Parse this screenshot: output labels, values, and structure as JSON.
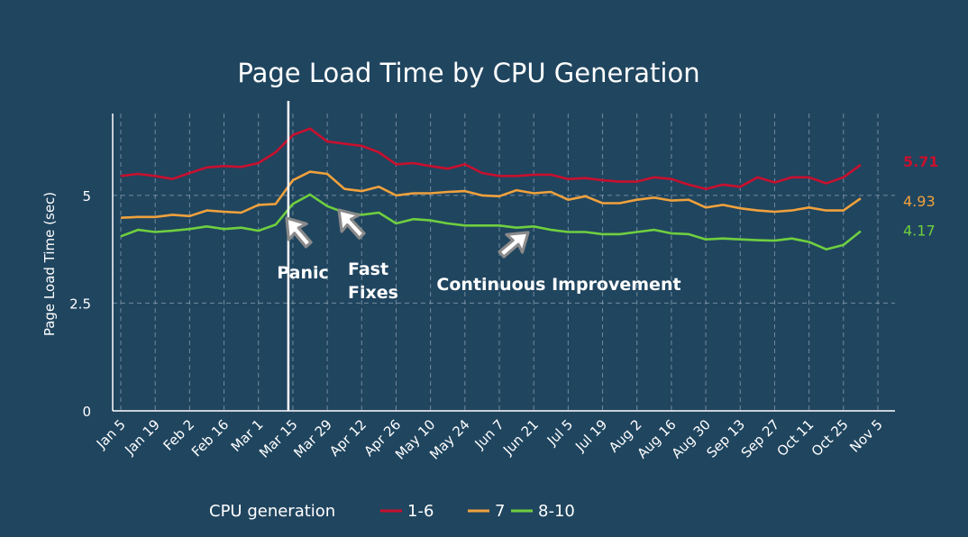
{
  "chart_data": {
    "type": "line",
    "title": "Page Load Time by CPU Generation",
    "xlabel": "",
    "ylabel": "Page Load Time (sec)",
    "ylim": [
      0,
      6.9
    ],
    "yticks": [
      0,
      2.5,
      5
    ],
    "ytick_labels": [
      "0",
      "2.5",
      "5"
    ],
    "grid": true,
    "x_tick_labels": [
      "Jan 5",
      "Jan 19",
      "Feb 2",
      "Feb 16",
      "Mar 1",
      "Mar 15",
      "Mar 29",
      "Apr 12",
      "Apr 26",
      "May 10",
      "May 24",
      "Jun 7",
      "Jun 21",
      "Jul 5",
      "Jul 19",
      "Aug 2",
      "Aug 16",
      "Aug 30",
      "Sep 13",
      "Sep 27",
      "Oct 11",
      "Oct 25",
      "Nov 5"
    ],
    "weeks_per_tick": 2,
    "vertical_marker_week": 10,
    "series": [
      {
        "name": "1-6",
        "color": "#c8102e",
        "end_label": "5.71",
        "values": [
          5.45,
          5.5,
          5.45,
          5.38,
          5.52,
          5.65,
          5.68,
          5.66,
          5.75,
          6.0,
          6.4,
          6.55,
          6.25,
          6.2,
          6.15,
          6.0,
          5.72,
          5.75,
          5.68,
          5.62,
          5.72,
          5.52,
          5.45,
          5.45,
          5.48,
          5.48,
          5.38,
          5.4,
          5.35,
          5.32,
          5.32,
          5.42,
          5.38,
          5.25,
          5.15,
          5.25,
          5.2,
          5.42,
          5.3,
          5.42,
          5.42,
          5.28,
          5.42,
          5.71
        ]
      },
      {
        "name": "7",
        "color": "#f0a13c",
        "end_label": "4.93",
        "values": [
          4.48,
          4.5,
          4.5,
          4.55,
          4.52,
          4.65,
          4.62,
          4.6,
          4.78,
          4.8,
          5.35,
          5.55,
          5.5,
          5.15,
          5.1,
          5.2,
          5.0,
          5.05,
          5.05,
          5.08,
          5.1,
          5.0,
          4.98,
          5.12,
          5.05,
          5.08,
          4.9,
          4.98,
          4.82,
          4.82,
          4.9,
          4.95,
          4.88,
          4.9,
          4.72,
          4.78,
          4.7,
          4.65,
          4.62,
          4.65,
          4.72,
          4.65,
          4.65,
          4.93
        ]
      },
      {
        "name": "8-10",
        "color": "#6fcf3f",
        "end_label": "4.17",
        "values": [
          4.05,
          4.2,
          4.15,
          4.18,
          4.22,
          4.28,
          4.22,
          4.25,
          4.18,
          4.32,
          4.8,
          5.02,
          4.75,
          4.6,
          4.55,
          4.6,
          4.35,
          4.45,
          4.42,
          4.35,
          4.3,
          4.3,
          4.3,
          4.25,
          4.28,
          4.2,
          4.15,
          4.15,
          4.1,
          4.1,
          4.15,
          4.2,
          4.12,
          4.1,
          3.98,
          4.0,
          3.98,
          3.96,
          3.95,
          4.0,
          3.92,
          3.75,
          3.85,
          4.17
        ]
      }
    ],
    "annotations": [
      {
        "id": "panic",
        "lines": [
          "Panic"
        ],
        "week": 11
      },
      {
        "id": "fast",
        "lines": [
          "Fast",
          "Fixes"
        ],
        "week": 13
      },
      {
        "id": "continuous",
        "lines": [
          "Continuous Improvement"
        ],
        "week": 25
      }
    ],
    "legend": {
      "title": "CPU generation",
      "placement": "bottom"
    }
  }
}
